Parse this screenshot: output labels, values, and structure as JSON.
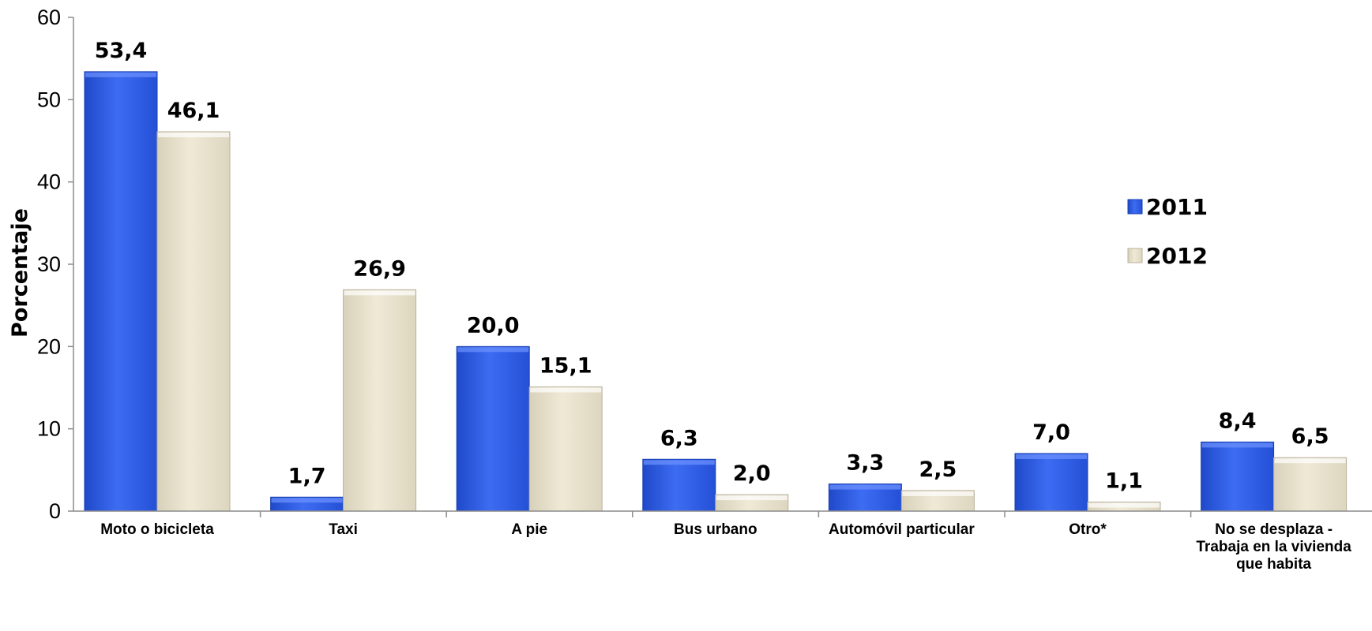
{
  "chart_data": {
    "type": "bar",
    "categories": [
      [
        "Moto o bicicleta"
      ],
      [
        "Taxi"
      ],
      [
        "A pie"
      ],
      [
        "Bus urbano"
      ],
      [
        "Automóvil particular"
      ],
      [
        "Otro*"
      ],
      [
        "No se desplaza -",
        "Trabaja en la vivienda",
        "que habita"
      ]
    ],
    "series": [
      {
        "name": "2011",
        "values": [
          53.4,
          1.7,
          20.0,
          6.3,
          3.3,
          7.0,
          8.4
        ],
        "labels": [
          "53,4",
          "1,7",
          "20,0",
          "6,3",
          "3,3",
          "7,0",
          "8,4"
        ],
        "color": "#2f5fe8"
      },
      {
        "name": "2012",
        "values": [
          46.1,
          26.9,
          15.1,
          2.0,
          2.5,
          1.1,
          6.5
        ],
        "labels": [
          "46,1",
          "26,9",
          "15,1",
          "2,0",
          "2,5",
          "1,1",
          "6,5"
        ],
        "color": "#ece5cf"
      }
    ],
    "ylabel": "Porcentaje",
    "xlabel": "",
    "ylim": [
      0,
      60
    ],
    "yticks": [
      0,
      10,
      20,
      30,
      40,
      50,
      60
    ],
    "grid": false,
    "legend": "right"
  }
}
